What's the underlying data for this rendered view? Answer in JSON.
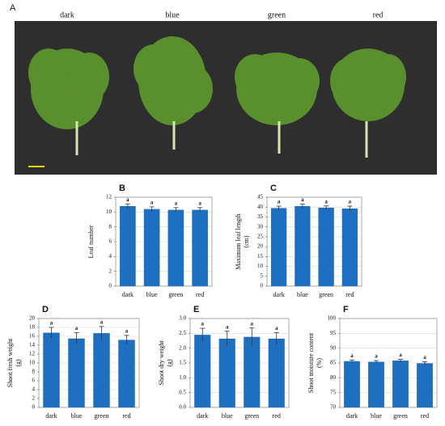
{
  "panel_a": {
    "label": "A",
    "columns": [
      "dark",
      "blue",
      "green",
      "red"
    ]
  },
  "chart_data": [
    {
      "type": "bar",
      "panel": "B",
      "ylabel": [
        "Leaf number"
      ],
      "categories": [
        "dark",
        "blue",
        "green",
        "red"
      ],
      "values": [
        10.8,
        10.4,
        10.3,
        10.3
      ],
      "errors": [
        0.3,
        0.3,
        0.3,
        0.3
      ],
      "annotations": [
        "a",
        "a",
        "a",
        "a"
      ],
      "color": "#1f6fc0",
      "ylim": [
        0,
        12
      ],
      "yticks": [
        0,
        2,
        4,
        6,
        8,
        10,
        12
      ],
      "grid": true
    },
    {
      "type": "bar",
      "panel": "C",
      "ylabel": [
        "Maximum leaf length",
        "(cm)"
      ],
      "categories": [
        "dark",
        "blue",
        "green",
        "red"
      ],
      "values": [
        39.5,
        40.5,
        39.7,
        39.3
      ],
      "errors": [
        1.0,
        1.0,
        0.9,
        1.2
      ],
      "annotations": [
        "a",
        "a",
        "a",
        "a"
      ],
      "color": "#1f6fc0",
      "ylim": [
        0,
        45
      ],
      "yticks": [
        0,
        5,
        10,
        15,
        20,
        25,
        30,
        35,
        40,
        45
      ],
      "grid": true
    },
    {
      "type": "bar",
      "panel": "D",
      "ylabel": [
        "Shoot fresh weight",
        "(g)"
      ],
      "categories": [
        "dark",
        "blue",
        "green",
        "red"
      ],
      "values": [
        16.8,
        15.5,
        16.7,
        15.2
      ],
      "errors": [
        1.2,
        1.3,
        1.5,
        1.0
      ],
      "annotations": [
        "a",
        "a",
        "a",
        "a"
      ],
      "color": "#1f6fc0",
      "ylim": [
        0,
        20
      ],
      "yticks": [
        0,
        2,
        4,
        6,
        8,
        10,
        12,
        14,
        16,
        18,
        20
      ],
      "grid": true
    },
    {
      "type": "bar",
      "panel": "E",
      "ylabel": [
        "Shoot dry weight",
        "(g)"
      ],
      "categories": [
        "dark",
        "blue",
        "green",
        "red"
      ],
      "values": [
        2.45,
        2.32,
        2.38,
        2.32
      ],
      "errors": [
        0.22,
        0.25,
        0.3,
        0.2
      ],
      "annotations": [
        "a",
        "a",
        "a",
        "a"
      ],
      "color": "#1f6fc0",
      "ylim": [
        0,
        3
      ],
      "yticks": [
        {
          "value": 0,
          "label": "0.0"
        },
        0.5,
        {
          "value": 1,
          "label": "1.0"
        },
        1.5,
        {
          "value": 2,
          "label": "2.0"
        },
        2.5,
        {
          "value": 3,
          "label": "3.0"
        }
      ],
      "grid": true
    },
    {
      "type": "bar",
      "panel": "F",
      "ylabel": [
        "Shoot moisture content",
        "(%)"
      ],
      "categories": [
        "dark",
        "blue",
        "green",
        "red"
      ],
      "values": [
        85.6,
        85.4,
        85.8,
        84.9
      ],
      "errors": [
        0.4,
        0.4,
        0.4,
        0.5
      ],
      "annotations": [
        "a",
        "a",
        "a",
        "a"
      ],
      "color": "#1f6fc0",
      "ylim": [
        70,
        100
      ],
      "yticks": [
        70,
        75,
        80,
        85,
        90,
        95,
        100
      ],
      "grid": true
    }
  ]
}
